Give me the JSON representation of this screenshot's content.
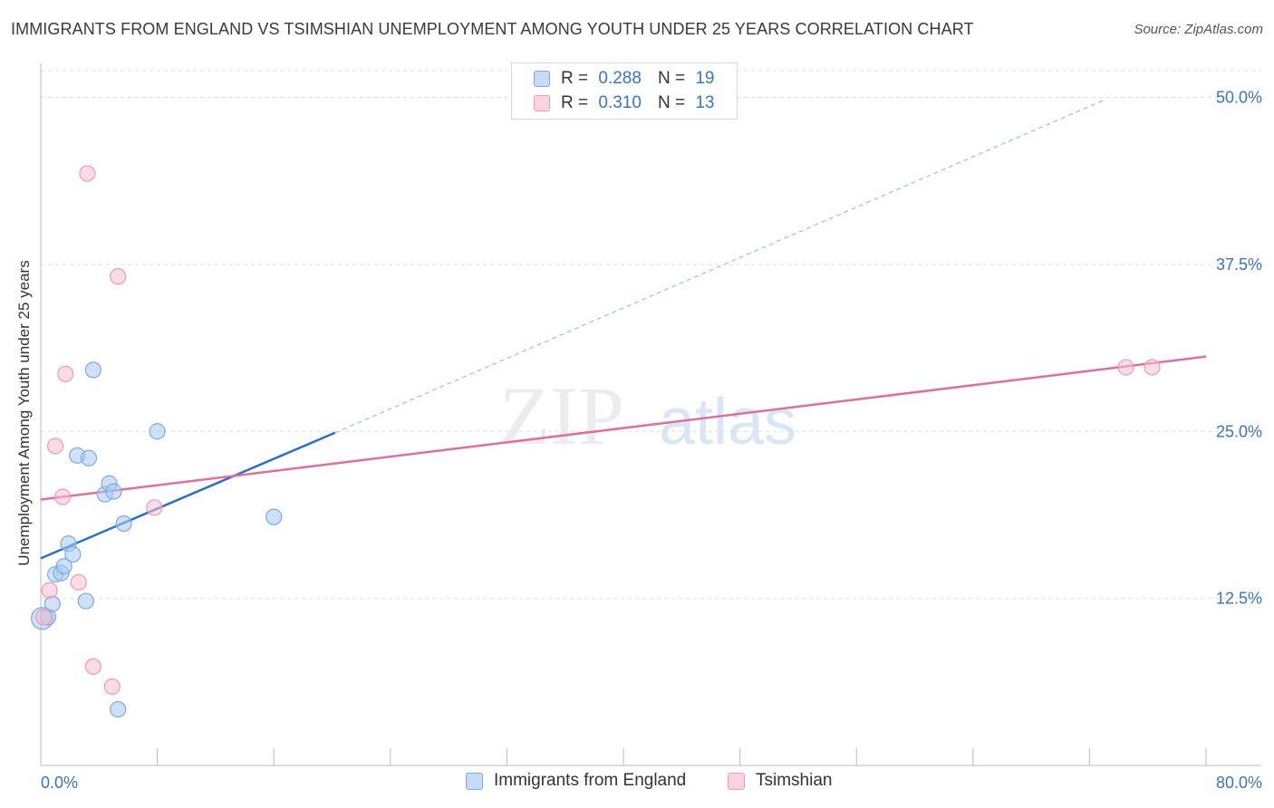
{
  "title": "IMMIGRANTS FROM ENGLAND VS TSIMSHIAN UNEMPLOYMENT AMONG YOUTH UNDER 25 YEARS CORRELATION CHART",
  "source": "Source: ZipAtlas.com",
  "watermark": {
    "zip": "ZIP",
    "atlas": "atlas"
  },
  "legend": {
    "r_label": "R =",
    "n_label": "N =",
    "rows": [
      {
        "name": "Immigrants from England",
        "r": "0.288",
        "n": "19"
      },
      {
        "name": "Tsimshian",
        "r": "0.310",
        "n": "13"
      }
    ]
  },
  "chart_data": {
    "type": "scatter",
    "title": "IMMIGRANTS FROM ENGLAND VS TSIMSHIAN UNEMPLOYMENT AMONG YOUTH UNDER 25 YEARS CORRELATION CHART",
    "xlabel": "",
    "ylabel": "Unemployment Among Youth under 25 years",
    "xlim": [
      0,
      80
    ],
    "ylim": [
      0,
      52
    ],
    "x_tick_labels": [
      "0.0%",
      "80.0%"
    ],
    "y_ticks": [
      12.5,
      25.0,
      37.5,
      50.0
    ],
    "y_tick_labels": [
      "12.5%",
      "25.0%",
      "37.5%",
      "50.0%"
    ],
    "grid": true,
    "colors": {
      "england": "#a9c8f0",
      "england_edge": "#7aaae6",
      "england_line": "#2a6fc9",
      "tsimshian": "#f6bfd0",
      "tsimshian_edge": "#ee9ab5",
      "tsimshian_line": "#e0709a",
      "tick_label": "#3a74c6"
    },
    "series": [
      {
        "name": "Immigrants from England",
        "color_key": "england",
        "points": [
          {
            "x": 0.1,
            "y": 11.0,
            "big": true
          },
          {
            "x": 0.5,
            "y": 11.1
          },
          {
            "x": 0.8,
            "y": 12.1
          },
          {
            "x": 1.0,
            "y": 14.3
          },
          {
            "x": 1.4,
            "y": 14.4
          },
          {
            "x": 1.6,
            "y": 14.9
          },
          {
            "x": 1.9,
            "y": 16.6
          },
          {
            "x": 2.2,
            "y": 15.8
          },
          {
            "x": 2.5,
            "y": 23.2
          },
          {
            "x": 3.1,
            "y": 12.3
          },
          {
            "x": 3.3,
            "y": 23.0
          },
          {
            "x": 3.6,
            "y": 29.6
          },
          {
            "x": 4.4,
            "y": 20.3
          },
          {
            "x": 4.7,
            "y": 21.1
          },
          {
            "x": 5.0,
            "y": 20.5
          },
          {
            "x": 5.3,
            "y": 4.2
          },
          {
            "x": 5.7,
            "y": 18.1
          },
          {
            "x": 8.0,
            "y": 25.0
          },
          {
            "x": 16.0,
            "y": 18.6
          }
        ],
        "trend": {
          "x0": 0,
          "y0": 15.5,
          "x1": 20.2,
          "y1": 24.9,
          "dash_x1": 73.0,
          "dash_y1": 49.8
        }
      },
      {
        "name": "Tsimshian",
        "color_key": "tsimshian",
        "points": [
          {
            "x": 0.2,
            "y": 11.1
          },
          {
            "x": 0.6,
            "y": 13.1
          },
          {
            "x": 1.0,
            "y": 23.9
          },
          {
            "x": 1.5,
            "y": 20.1
          },
          {
            "x": 1.7,
            "y": 29.3
          },
          {
            "x": 2.6,
            "y": 13.7
          },
          {
            "x": 3.2,
            "y": 44.3
          },
          {
            "x": 3.6,
            "y": 7.4
          },
          {
            "x": 4.9,
            "y": 5.9
          },
          {
            "x": 5.3,
            "y": 36.6
          },
          {
            "x": 7.8,
            "y": 19.3
          },
          {
            "x": 74.5,
            "y": 29.8
          },
          {
            "x": 76.3,
            "y": 29.8
          }
        ],
        "trend": {
          "x0": 0,
          "y0": 19.9,
          "x1": 80.0,
          "y1": 30.6
        }
      }
    ]
  }
}
